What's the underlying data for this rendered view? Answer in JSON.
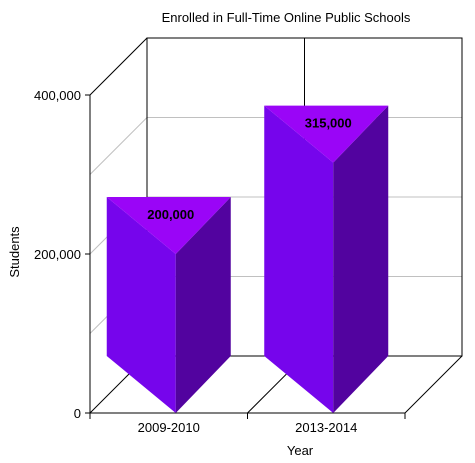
{
  "chart_data": {
    "type": "bar",
    "title": "Enrolled in Full-Time Online Public Schools",
    "xlabel": "Year",
    "ylabel": "Students",
    "categories": [
      "2009-2010",
      "2013-2014"
    ],
    "values": [
      200000,
      315000
    ],
    "data_labels": [
      "200,000",
      "315,000"
    ],
    "y_ticks": [
      0,
      200000,
      400000
    ],
    "y_tick_labels": [
      "0",
      "200,000",
      "400,000"
    ],
    "ylim": [
      0,
      400000
    ],
    "grid": true,
    "legend": "none",
    "colors": {
      "bar_top": "#9a05f7",
      "bar_front": "#7605ec",
      "bar_side": "#52039f",
      "grid": "#c0c0c0",
      "axis": "#000000"
    }
  }
}
